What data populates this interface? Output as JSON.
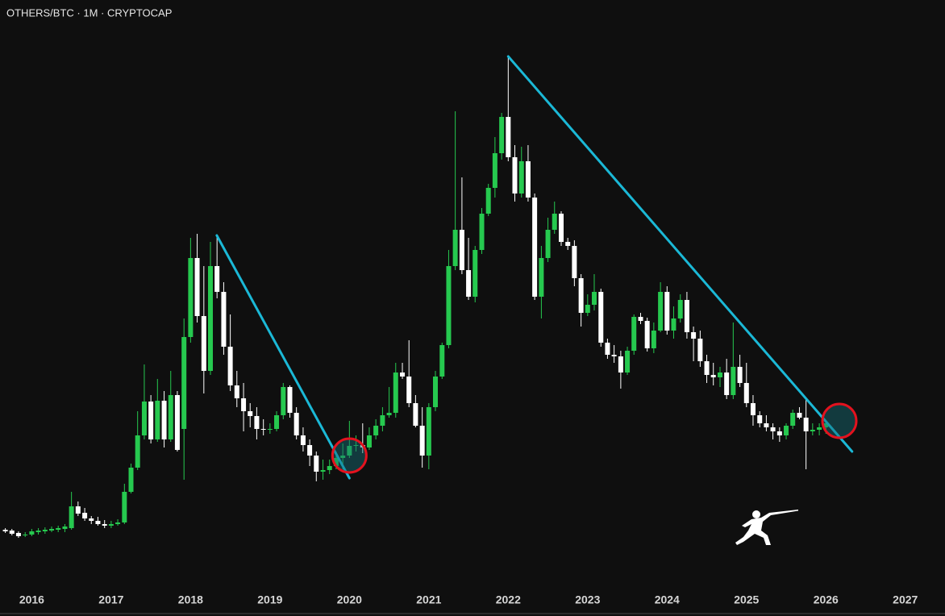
{
  "chart_data": {
    "type": "candlestick",
    "title": "OTHERS/BTC · 1M · CRYPTOCAP",
    "xlim": [
      2015.6,
      2027.5
    ],
    "ylim": [
      280,
      1000
    ],
    "xticks": [
      2016,
      2017,
      2018,
      2019,
      2020,
      2021,
      2022,
      2023,
      2024,
      2025,
      2026,
      2027
    ],
    "up_color": "#26c94f",
    "down_color": "#ffffff",
    "x": [
      2015.667,
      2015.75,
      2015.833,
      2015.917,
      2016,
      2016.083,
      2016.167,
      2016.25,
      2016.333,
      2016.417,
      2016.5,
      2016.583,
      2016.667,
      2016.75,
      2016.833,
      2016.917,
      2017,
      2017.083,
      2017.167,
      2017.25,
      2017.333,
      2017.417,
      2017.5,
      2017.583,
      2017.667,
      2017.75,
      2017.833,
      2017.917,
      2018,
      2018.083,
      2018.167,
      2018.25,
      2018.333,
      2018.417,
      2018.5,
      2018.583,
      2018.667,
      2018.75,
      2018.833,
      2018.917,
      2019,
      2019.083,
      2019.167,
      2019.25,
      2019.333,
      2019.417,
      2019.5,
      2019.583,
      2019.667,
      2019.75,
      2019.833,
      2019.917,
      2020,
      2020.083,
      2020.167,
      2020.25,
      2020.333,
      2020.417,
      2020.5,
      2020.583,
      2020.667,
      2020.75,
      2020.833,
      2020.917,
      2021,
      2021.083,
      2021.167,
      2021.25,
      2021.333,
      2021.417,
      2021.5,
      2021.583,
      2021.667,
      2021.75,
      2021.833,
      2021.917,
      2022,
      2022.083,
      2022.167,
      2022.25,
      2022.333,
      2022.417,
      2022.5,
      2022.583,
      2022.667,
      2022.75,
      2022.833,
      2022.917,
      2023,
      2023.083,
      2023.167,
      2023.25,
      2023.333,
      2023.417,
      2023.5,
      2023.583,
      2023.667,
      2023.75,
      2023.833,
      2023.917,
      2024,
      2024.083,
      2024.167,
      2024.25,
      2024.333,
      2024.417,
      2024.5,
      2024.583,
      2024.667,
      2024.75,
      2024.833,
      2024.917,
      2025,
      2025.083,
      2025.167,
      2025.25,
      2025.333,
      2025.417,
      2025.5,
      2025.583,
      2025.667,
      2025.75,
      2025.833,
      2025.917,
      2026
    ],
    "open": [
      343,
      342,
      339,
      336,
      337,
      340,
      341,
      342,
      343,
      344,
      345,
      372,
      364,
      357,
      354,
      350,
      348,
      350,
      352,
      390,
      420,
      460,
      502,
      455,
      503,
      455,
      510,
      468,
      582,
      680,
      608,
      540,
      670,
      638,
      570,
      522,
      506,
      490,
      484,
      468,
      467,
      468,
      485,
      520,
      488,
      460,
      448,
      435,
      415,
      417,
      422,
      432,
      435,
      447,
      448,
      445,
      460,
      472,
      485,
      488,
      538,
      533,
      500,
      472,
      435,
      495,
      533,
      572,
      670,
      715,
      665,
      632,
      690,
      735,
      767,
      810,
      855,
      805,
      760,
      800,
      755,
      632,
      680,
      715,
      735,
      700,
      695,
      655,
      612,
      622,
      638,
      575,
      560,
      558,
      538,
      565,
      607,
      602,
      568,
      590,
      638,
      590,
      605,
      628,
      588,
      580,
      552,
      535,
      532,
      538,
      510,
      545,
      525,
      500,
      485,
      475,
      470,
      465,
      460,
      472,
      488,
      482,
      465,
      467,
      470
    ],
    "high": [
      345,
      344,
      341,
      340,
      344,
      345,
      346,
      347,
      348,
      350,
      390,
      378,
      370,
      360,
      359,
      355,
      354,
      356,
      400,
      425,
      490,
      548,
      510,
      530,
      515,
      540,
      515,
      605,
      705,
      710,
      670,
      700,
      708,
      650,
      610,
      540,
      525,
      500,
      495,
      480,
      475,
      490,
      525,
      522,
      495,
      470,
      455,
      440,
      430,
      430,
      440,
      450,
      478,
      460,
      475,
      470,
      480,
      495,
      520,
      550,
      550,
      578,
      510,
      495,
      500,
      540,
      575,
      690,
      862,
      780,
      705,
      695,
      742,
      772,
      830,
      860,
      930,
      820,
      818,
      820,
      760,
      695,
      730,
      750,
      738,
      705,
      702,
      660,
      635,
      660,
      642,
      580,
      572,
      565,
      570,
      610,
      612,
      606,
      600,
      650,
      645,
      620,
      635,
      638,
      595,
      590,
      560,
      550,
      545,
      555,
      600,
      560,
      550,
      510,
      490,
      485,
      475,
      470,
      475,
      492,
      495,
      505,
      475,
      475,
      478
    ],
    "low": [
      339,
      336,
      333,
      334,
      335,
      337,
      338,
      340,
      340,
      340,
      343,
      360,
      354,
      350,
      348,
      345,
      345,
      348,
      350,
      388,
      417,
      455,
      450,
      452,
      445,
      452,
      440,
      405,
      575,
      600,
      512,
      535,
      630,
      560,
      515,
      495,
      465,
      470,
      455,
      460,
      462,
      465,
      480,
      482,
      455,
      440,
      422,
      403,
      405,
      412,
      418,
      418,
      432,
      440,
      438,
      442,
      455,
      465,
      482,
      482,
      530,
      495,
      470,
      420,
      418,
      490,
      530,
      568,
      665,
      660,
      628,
      625,
      685,
      732,
      755,
      802,
      800,
      750,
      755,
      750,
      628,
      605,
      675,
      710,
      695,
      690,
      645,
      595,
      608,
      615,
      570,
      555,
      550,
      518,
      535,
      560,
      598,
      564,
      562,
      588,
      585,
      580,
      600,
      580,
      552,
      545,
      525,
      522,
      520,
      505,
      505,
      520,
      495,
      472,
      470,
      465,
      455,
      452,
      455,
      468,
      480,
      418,
      460,
      460,
      462
    ],
    "close": [
      341,
      338,
      335,
      337,
      341,
      342,
      343,
      344,
      345,
      347,
      372,
      363,
      357,
      354,
      350,
      348,
      350,
      352,
      390,
      420,
      460,
      502,
      455,
      503,
      455,
      510,
      442,
      582,
      680,
      608,
      540,
      670,
      638,
      570,
      522,
      506,
      490,
      484,
      468,
      467,
      468,
      485,
      520,
      488,
      460,
      448,
      435,
      415,
      417,
      422,
      432,
      435,
      447,
      448,
      445,
      460,
      472,
      485,
      488,
      538,
      533,
      500,
      472,
      435,
      495,
      533,
      572,
      670,
      715,
      665,
      632,
      690,
      735,
      767,
      810,
      855,
      805,
      760,
      800,
      755,
      632,
      680,
      715,
      735,
      700,
      695,
      655,
      612,
      622,
      638,
      575,
      560,
      558,
      538,
      565,
      607,
      602,
      568,
      590,
      638,
      590,
      605,
      628,
      588,
      580,
      552,
      535,
      532,
      538,
      510,
      545,
      525,
      500,
      485,
      475,
      470,
      465,
      460,
      472,
      488,
      482,
      465,
      467,
      470,
      475
    ],
    "trendlines": [
      {
        "color": "#1bb8d6",
        "x": [
          2018.33,
          2020.0
        ],
        "y": [
          708,
          407
        ]
      },
      {
        "color": "#1bb8d6",
        "x": [
          2022.0,
          2026.33
        ],
        "y": [
          930,
          440
        ]
      }
    ],
    "highlights": [
      {
        "color": "#e3121e",
        "x": 2020.0,
        "y": 435
      },
      {
        "color": "#e3121e",
        "x": 2026.17,
        "y": 478
      }
    ]
  }
}
